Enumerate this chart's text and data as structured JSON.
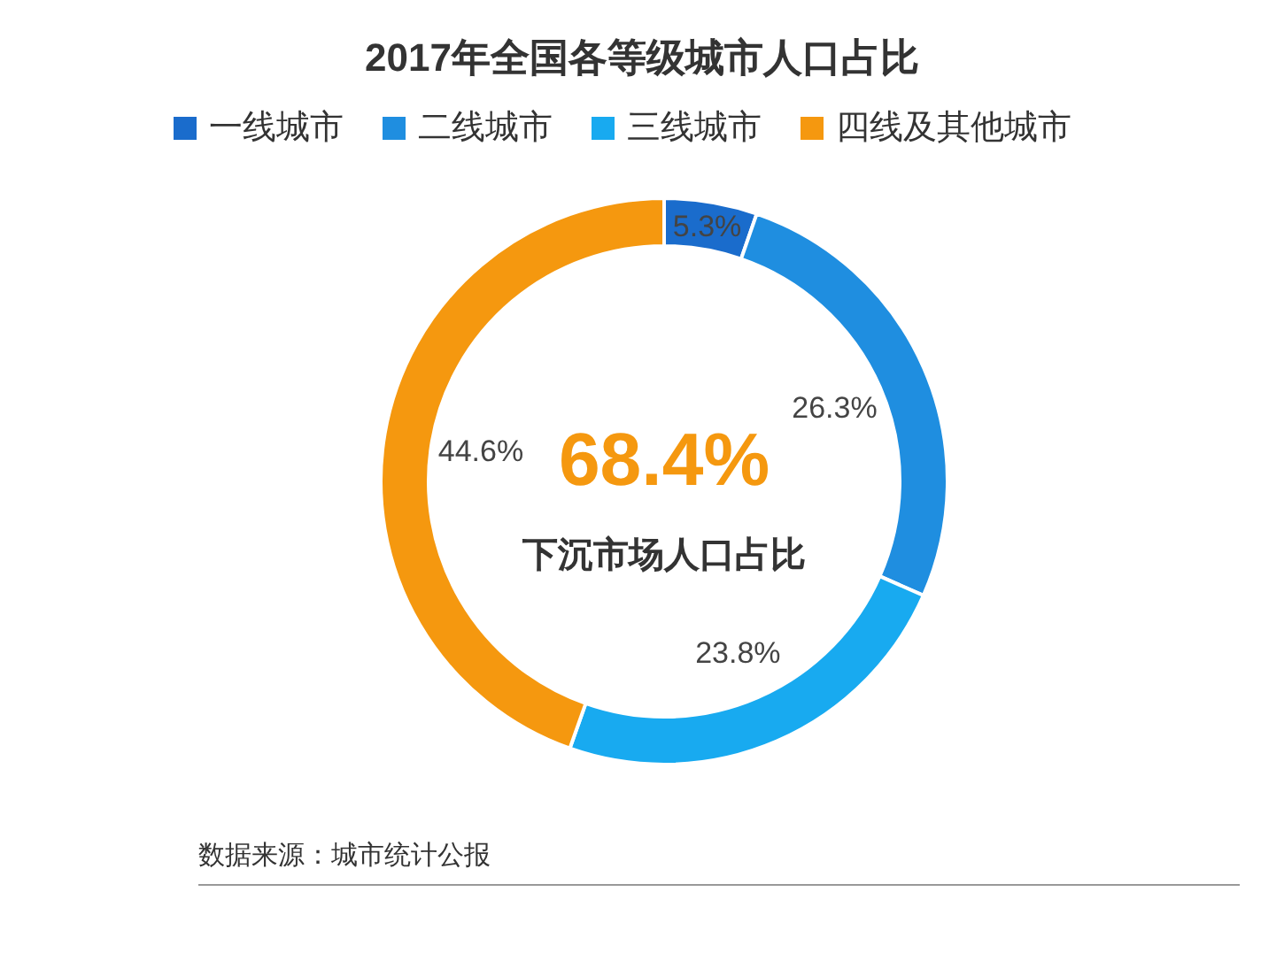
{
  "chart_data": {
    "type": "donut",
    "title": "2017年全国各等级城市人口占比",
    "categories": [
      "一线城市",
      "二线城市",
      "三线城市",
      "四线及其他城市"
    ],
    "values": [
      5.3,
      26.3,
      23.8,
      44.6
    ],
    "colors": [
      "#1a6ccc",
      "#1f8ee0",
      "#18aaf0",
      "#f5980f"
    ],
    "value_labels": [
      "5.3%",
      "26.3%",
      "23.8%",
      "44.6%"
    ],
    "legend": "top",
    "annotations": [
      "68.4%",
      "下沉市场人口占比",
      "数据来源：城市统计公报"
    ]
  }
}
